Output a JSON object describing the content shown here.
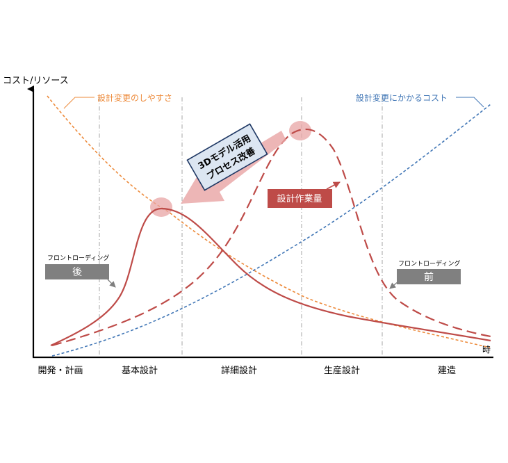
{
  "y_axis_label": "コスト/リソース",
  "x_axis_label_partial": "時",
  "curves": {
    "ease_of_change": {
      "label": "設計変更のしやすさ",
      "color": "#ED8A3A"
    },
    "cost_of_change": {
      "label": "設計変更にかかるコスト",
      "color": "#3F75B5"
    },
    "design_workload": {
      "label": "設計作業量",
      "color": "#BE4B48"
    }
  },
  "callout_process": {
    "line1": "3Dモデル活用",
    "line2": "プロセス改善"
  },
  "frontloading_after": {
    "caption": "フロントローディング",
    "badge": "後"
  },
  "frontloading_before": {
    "caption": "フロントローディング",
    "badge": "前"
  },
  "phases": [
    "開発・計画",
    "基本設計",
    "詳細設計",
    "生産設計",
    "建造"
  ],
  "colors": {
    "badge_gray": "#808080",
    "highlight": "#E8A4A4",
    "callout_fill": "#DCE6F2",
    "callout_border": "#1F3864",
    "axis": "#000000",
    "divider": "#A6A6A6"
  }
}
